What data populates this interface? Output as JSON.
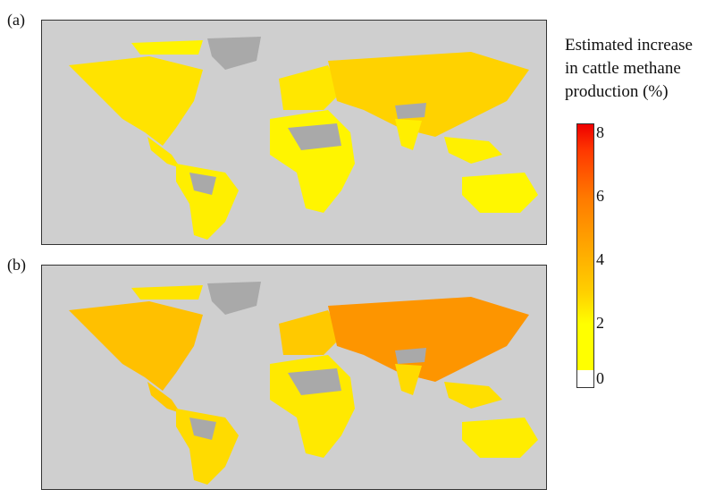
{
  "panels": [
    {
      "label": "(a)",
      "intensity": 0.45
    },
    {
      "label": "(b)",
      "intensity": 1.0
    }
  ],
  "legend": {
    "title": "Estimated increase\nin cattle methane\nproduction (%)",
    "ticks": [
      "8",
      "6",
      "4",
      "2",
      "0"
    ],
    "range": [
      0,
      8.3
    ],
    "colors": {
      "zero": "#ffffff",
      "low": "#ffff00",
      "mid": "#ffa500",
      "high": "#ee0000",
      "ocean": "#cfcfcf",
      "no_data_land": "#a9a9a9"
    }
  }
}
